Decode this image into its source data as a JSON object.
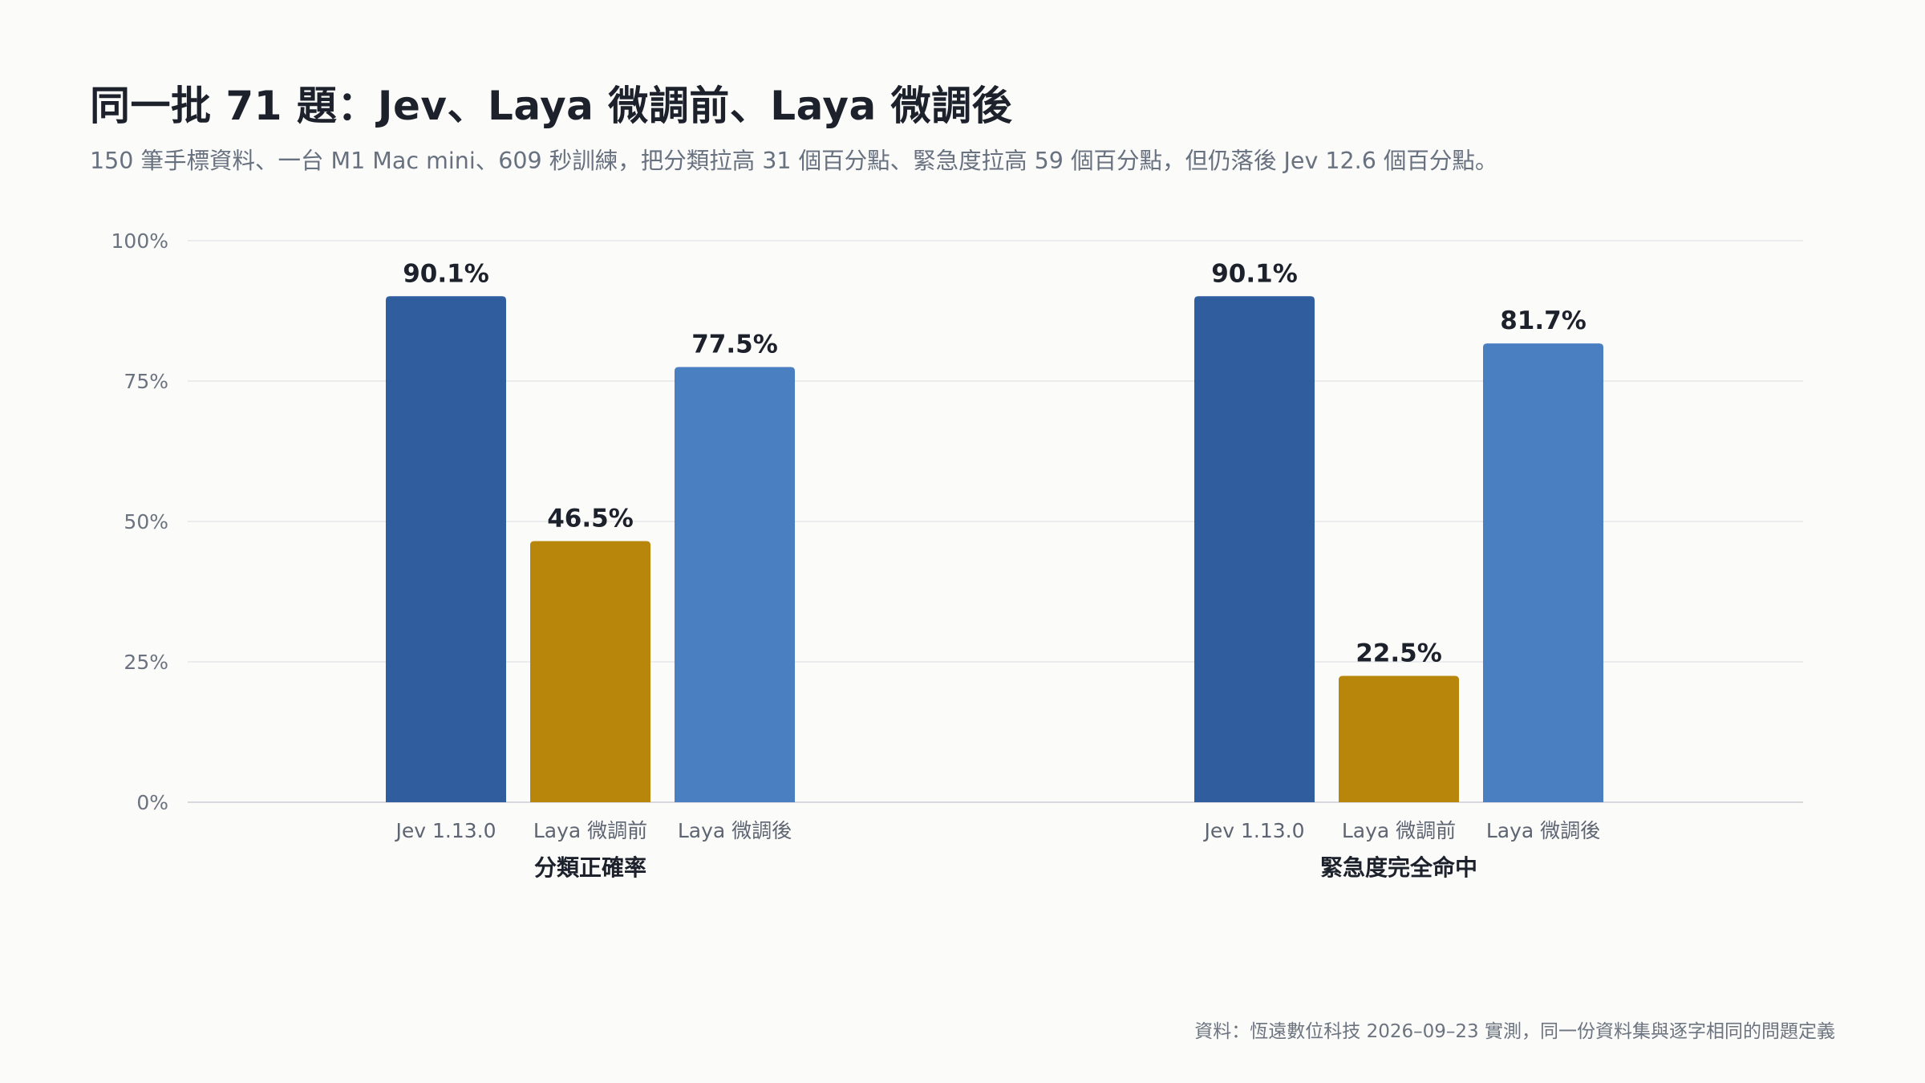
{
  "header": {
    "title": "同一批 71 題：Jev、Laya 微調前、Laya 微調後",
    "subtitle": "150 筆手標資料、一台 M1 Mac mini、609 秒訓練，把分類拉高 31 個百分點、緊急度拉高 59 個百分點，但仍落後 Jev 12.6 個百分點。"
  },
  "chart_data": {
    "type": "bar",
    "title": "同一批 71 題：Jev、Laya 微調前、Laya 微調後",
    "subtitle": "150 筆手標資料、一台 M1 Mac mini、609 秒訓練，把分類拉高 31 個百分點、緊急度拉高 59 個百分點，但仍落後 Jev 12.6 個百分點。",
    "ylim": [
      0,
      100
    ],
    "y_ticks": [
      {
        "value": 0,
        "label": "0%"
      },
      {
        "value": 25,
        "label": "25%"
      },
      {
        "value": 50,
        "label": "50%"
      },
      {
        "value": 75,
        "label": "75%"
      },
      {
        "value": 100,
        "label": "100%"
      }
    ],
    "grid": true,
    "groups": [
      "分類正確率",
      "緊急度完全命中"
    ],
    "series": [
      {
        "name": "Jev 1.13.0",
        "color": "#2f5d9e",
        "values": [
          90.1,
          90.1
        ],
        "labels": [
          "90.1%",
          "90.1%"
        ]
      },
      {
        "name": "Laya 微調前",
        "color": "#b8860b",
        "values": [
          46.5,
          22.5
        ],
        "labels": [
          "46.5%",
          "22.5%"
        ]
      },
      {
        "name": "Laya 微調後",
        "color": "#4a7fc1",
        "values": [
          77.5,
          81.7
        ],
        "labels": [
          "77.5%",
          "81.7%"
        ]
      }
    ]
  },
  "footer": {
    "source": "資料：恆遠數位科技 2026–09–23 實測，同一份資料集與逐字相同的問題定義"
  }
}
